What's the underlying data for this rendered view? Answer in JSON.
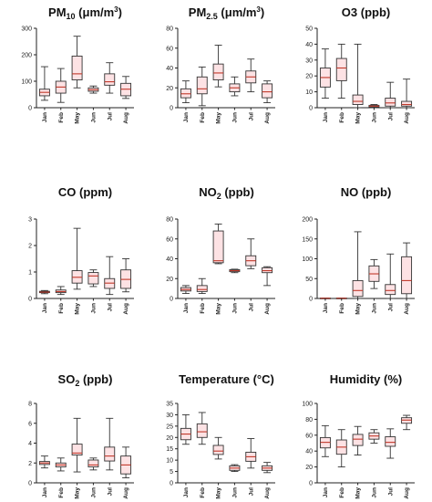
{
  "colors": {
    "box_fill": "#fde2e4",
    "stroke": "#333333",
    "median": "#c0392b",
    "background": "#ffffff"
  },
  "chart_data": [
    {
      "type": "box",
      "title": "PM10 (μm/m3)",
      "title_parts": {
        "base": "PM",
        "sub": "10",
        "unit_pre": " (μm/m",
        "sup": "3",
        "unit_post": ")"
      },
      "categories": [
        "Jan",
        "Feb",
        "May",
        "Jun",
        "Jul",
        "Aug"
      ],
      "ylim": [
        0,
        300
      ],
      "yticks": [
        0,
        100,
        200,
        300
      ],
      "boxes": [
        {
          "min": 28,
          "q1": 45,
          "median": 58,
          "q3": 70,
          "max": 155
        },
        {
          "min": 20,
          "q1": 55,
          "median": 78,
          "q3": 100,
          "max": 148
        },
        {
          "min": 75,
          "q1": 105,
          "median": 128,
          "q3": 195,
          "max": 270
        },
        {
          "min": 55,
          "q1": 62,
          "median": 68,
          "q3": 75,
          "max": 82
        },
        {
          "min": 55,
          "q1": 85,
          "median": 98,
          "q3": 128,
          "max": 170
        },
        {
          "min": 35,
          "q1": 45,
          "median": 70,
          "q3": 92,
          "max": 118
        }
      ]
    },
    {
      "type": "box",
      "title": "PM2.5 (μm/m3)",
      "title_parts": {
        "base": "PM",
        "sub": "2.5",
        "unit_pre": " (μm/m",
        "sup": "3",
        "unit_post": ")"
      },
      "categories": [
        "Jan",
        "Feb",
        "May",
        "Jun",
        "Jul",
        "Aug"
      ],
      "ylim": [
        0,
        80
      ],
      "yticks": [
        0,
        20,
        40,
        60,
        80
      ],
      "boxes": [
        {
          "min": 5,
          "q1": 10,
          "median": 14,
          "q3": 19,
          "max": 27
        },
        {
          "min": 2,
          "q1": 14,
          "median": 19,
          "q3": 31,
          "max": 41
        },
        {
          "min": 21,
          "q1": 28,
          "median": 35,
          "q3": 44,
          "max": 63
        },
        {
          "min": 12,
          "q1": 16,
          "median": 20,
          "q3": 24,
          "max": 31
        },
        {
          "min": 16,
          "q1": 25,
          "median": 31,
          "q3": 37,
          "max": 49
        },
        {
          "min": 5,
          "q1": 10,
          "median": 16,
          "q3": 24,
          "max": 27
        }
      ]
    },
    {
      "type": "box",
      "title": "O3 (ppb)",
      "title_parts": {
        "base": "O3 (ppb)"
      },
      "categories": [
        "Jan",
        "Feb",
        "May",
        "Jun",
        "Jul",
        "Aug"
      ],
      "ylim": [
        0,
        50
      ],
      "yticks": [
        0,
        10,
        20,
        30,
        40,
        50
      ],
      "boxes": [
        {
          "min": 6,
          "q1": 13,
          "median": 19,
          "q3": 25,
          "max": 37
        },
        {
          "min": 6,
          "q1": 17,
          "median": 25,
          "q3": 31,
          "max": 40
        },
        {
          "min": 0,
          "q1": 2,
          "median": 4,
          "q3": 8,
          "max": 40
        },
        {
          "min": 0,
          "q1": 0.5,
          "median": 1,
          "q3": 1.5,
          "max": 2
        },
        {
          "min": 0,
          "q1": 1,
          "median": 3,
          "q3": 6,
          "max": 16
        },
        {
          "min": 0,
          "q1": 1,
          "median": 2,
          "q3": 4,
          "max": 18
        }
      ]
    },
    {
      "type": "box",
      "title": "CO (ppm)",
      "title_parts": {
        "base": "CO (ppm)"
      },
      "categories": [
        "Jan",
        "Feb",
        "May",
        "Jun",
        "Jul",
        "Aug"
      ],
      "ylim": [
        0,
        3
      ],
      "yticks": [
        0,
        1,
        2,
        3
      ],
      "boxes": [
        {
          "min": 0.18,
          "q1": 0.22,
          "median": 0.24,
          "q3": 0.27,
          "max": 0.3
        },
        {
          "min": 0.15,
          "q1": 0.22,
          "median": 0.26,
          "q3": 0.32,
          "max": 0.45
        },
        {
          "min": 0.35,
          "q1": 0.58,
          "median": 0.8,
          "q3": 1.05,
          "max": 2.65
        },
        {
          "min": 0.45,
          "q1": 0.55,
          "median": 0.85,
          "q3": 0.98,
          "max": 1.08
        },
        {
          "min": 0.15,
          "q1": 0.38,
          "median": 0.58,
          "q3": 0.75,
          "max": 1.58
        },
        {
          "min": 0.25,
          "q1": 0.38,
          "median": 0.72,
          "q3": 1.08,
          "max": 1.5
        }
      ]
    },
    {
      "type": "box",
      "title": "NO2 (ppb)",
      "title_parts": {
        "base": "NO",
        "sub": "2",
        "unit_pre": " (ppb)"
      },
      "categories": [
        "Jan",
        "Feb",
        "May",
        "Jun",
        "Jul",
        "Aug"
      ],
      "ylim": [
        0,
        80
      ],
      "yticks": [
        0,
        20,
        40,
        60,
        80
      ],
      "boxes": [
        {
          "min": 5,
          "q1": 7.5,
          "median": 9,
          "q3": 11,
          "max": 13
        },
        {
          "min": 5,
          "q1": 7,
          "median": 9,
          "q3": 13,
          "max": 20
        },
        {
          "min": 35,
          "q1": 36,
          "median": 38,
          "q3": 68,
          "max": 75
        },
        {
          "min": 26,
          "q1": 27,
          "median": 28,
          "q3": 29,
          "max": 29.5
        },
        {
          "min": 30,
          "q1": 33,
          "median": 38,
          "q3": 43,
          "max": 60
        },
        {
          "min": 13,
          "q1": 26,
          "median": 28,
          "q3": 31,
          "max": 32
        }
      ]
    },
    {
      "type": "box",
      "title": "NO (ppb)",
      "title_parts": {
        "base": "NO (ppb)"
      },
      "categories": [
        "Jan",
        "Feb",
        "May",
        "Jun",
        "Jul",
        "Aug"
      ],
      "ylim": [
        0,
        200
      ],
      "yticks": [
        0,
        50,
        100,
        150,
        200
      ],
      "boxes": [
        {
          "min": 0,
          "q1": 0,
          "median": 0.5,
          "q3": 1,
          "max": 1
        },
        {
          "min": 0,
          "q1": 0,
          "median": 0.5,
          "q3": 1,
          "max": 1
        },
        {
          "min": 0,
          "q1": 5,
          "median": 20,
          "q3": 45,
          "max": 168
        },
        {
          "min": 25,
          "q1": 43,
          "median": 62,
          "q3": 82,
          "max": 98
        },
        {
          "min": 0,
          "q1": 10,
          "median": 20,
          "q3": 35,
          "max": 112
        },
        {
          "min": 0,
          "q1": 12,
          "median": 45,
          "q3": 105,
          "max": 140
        }
      ]
    },
    {
      "type": "box",
      "title": "SO2 (ppb)",
      "title_parts": {
        "base": "SO",
        "sub": "2",
        "unit_pre": " (ppb)"
      },
      "categories": [
        "Jan",
        "Feb",
        "May",
        "Jun",
        "Jul",
        "Aug"
      ],
      "ylim": [
        0,
        8
      ],
      "yticks": [
        0,
        2,
        4,
        6,
        8
      ],
      "boxes": [
        {
          "min": 1.5,
          "q1": 1.85,
          "median": 2.0,
          "q3": 2.15,
          "max": 2.7
        },
        {
          "min": 1.2,
          "q1": 1.6,
          "median": 1.8,
          "q3": 2.0,
          "max": 2.5
        },
        {
          "min": 1.1,
          "q1": 2.8,
          "median": 3.0,
          "q3": 3.9,
          "max": 6.5
        },
        {
          "min": 1.3,
          "q1": 1.6,
          "median": 1.8,
          "q3": 2.3,
          "max": 2.5
        },
        {
          "min": 1.3,
          "q1": 2.2,
          "median": 2.7,
          "q3": 3.6,
          "max": 6.5
        },
        {
          "min": 0.5,
          "q1": 0.9,
          "median": 1.8,
          "q3": 2.7,
          "max": 3.6
        }
      ]
    },
    {
      "type": "box",
      "title": "Temperature (°C)",
      "title_parts": {
        "base": "Temperature (°C)"
      },
      "categories": [
        "Jan",
        "Feb",
        "May",
        "Jun",
        "Jul",
        "Aug"
      ],
      "ylim": [
        0,
        35
      ],
      "yticks": [
        0,
        5,
        10,
        15,
        20,
        25,
        30,
        35
      ],
      "boxes": [
        {
          "min": 17,
          "q1": 19,
          "median": 21.5,
          "q3": 24,
          "max": 30
        },
        {
          "min": 17,
          "q1": 20,
          "median": 22.5,
          "q3": 26,
          "max": 31
        },
        {
          "min": 10.5,
          "q1": 12.5,
          "median": 14,
          "q3": 16.5,
          "max": 20
        },
        {
          "min": 5,
          "q1": 5.5,
          "median": 6.5,
          "q3": 7.5,
          "max": 8
        },
        {
          "min": 6.5,
          "q1": 9.5,
          "median": 11.5,
          "q3": 13.5,
          "max": 19.5
        },
        {
          "min": 4.5,
          "q1": 5.5,
          "median": 6.5,
          "q3": 7.5,
          "max": 9
        }
      ]
    },
    {
      "type": "box",
      "title": "Humidity (%)",
      "title_parts": {
        "base": "Humidity (%)"
      },
      "categories": [
        "Jan",
        "Feb",
        "May",
        "Jun",
        "Jul",
        "Aug"
      ],
      "ylim": [
        0,
        100
      ],
      "yticks": [
        0,
        20,
        40,
        60,
        80,
        100
      ],
      "boxes": [
        {
          "min": 33,
          "q1": 44,
          "median": 51,
          "q3": 57,
          "max": 72
        },
        {
          "min": 20,
          "q1": 36,
          "median": 45,
          "q3": 54,
          "max": 67
        },
        {
          "min": 35,
          "q1": 47,
          "median": 55,
          "q3": 61,
          "max": 71
        },
        {
          "min": 50,
          "q1": 55,
          "median": 59,
          "q3": 63,
          "max": 67
        },
        {
          "min": 31,
          "q1": 46,
          "median": 51,
          "q3": 58,
          "max": 68
        },
        {
          "min": 67,
          "q1": 75,
          "median": 79,
          "q3": 82,
          "max": 85
        }
      ]
    }
  ]
}
